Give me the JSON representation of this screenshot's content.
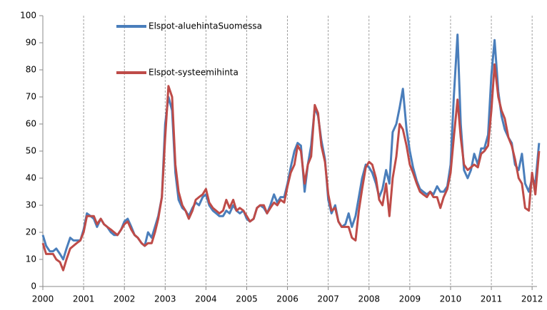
{
  "chart_data": {
    "type": "line",
    "x": [
      2000,
      2000.08,
      2000.17,
      2000.25,
      2000.33,
      2000.42,
      2000.5,
      2000.58,
      2000.67,
      2000.75,
      2000.83,
      2000.92,
      2001,
      2001.08,
      2001.17,
      2001.25,
      2001.33,
      2001.42,
      2001.5,
      2001.58,
      2001.67,
      2001.75,
      2001.83,
      2001.92,
      2002,
      2002.08,
      2002.17,
      2002.25,
      2002.33,
      2002.42,
      2002.5,
      2002.58,
      2002.67,
      2002.75,
      2002.83,
      2002.92,
      2003,
      2003.08,
      2003.17,
      2003.25,
      2003.33,
      2003.42,
      2003.5,
      2003.58,
      2003.67,
      2003.75,
      2003.83,
      2003.92,
      2004,
      2004.08,
      2004.17,
      2004.25,
      2004.33,
      2004.42,
      2004.5,
      2004.58,
      2004.67,
      2004.75,
      2004.83,
      2004.92,
      2005,
      2005.08,
      2005.17,
      2005.25,
      2005.33,
      2005.42,
      2005.5,
      2005.58,
      2005.67,
      2005.75,
      2005.83,
      2005.92,
      2006,
      2006.08,
      2006.17,
      2006.25,
      2006.33,
      2006.42,
      2006.5,
      2006.58,
      2006.67,
      2006.75,
      2006.83,
      2006.92,
      2007,
      2007.08,
      2007.17,
      2007.25,
      2007.33,
      2007.42,
      2007.5,
      2007.58,
      2007.67,
      2007.75,
      2007.83,
      2007.92,
      2008,
      2008.08,
      2008.17,
      2008.25,
      2008.33,
      2008.42,
      2008.5,
      2008.58,
      2008.67,
      2008.75,
      2008.83,
      2008.92,
      2009,
      2009.08,
      2009.17,
      2009.25,
      2009.33,
      2009.42,
      2009.5,
      2009.58,
      2009.67,
      2009.75,
      2009.83,
      2009.92,
      2010,
      2010.08,
      2010.17,
      2010.25,
      2010.33,
      2010.42,
      2010.5,
      2010.58,
      2010.67,
      2010.75,
      2010.83,
      2010.92,
      2011,
      2011.08,
      2011.17,
      2011.25,
      2011.33,
      2011.42,
      2011.5,
      2011.58,
      2011.67,
      2011.75,
      2011.83,
      2011.92,
      2012,
      2012.08,
      2012.17
    ],
    "series": [
      {
        "name": "Elspot-aluehintaSuomessa",
        "color": "#4a7ebb",
        "values": [
          19,
          15,
          13,
          13,
          14,
          12,
          10,
          14,
          18,
          17,
          17,
          17,
          21,
          27,
          26,
          25,
          22,
          25,
          23,
          22,
          20,
          19,
          19,
          21,
          24,
          25,
          22,
          19,
          18,
          16,
          15,
          20,
          18,
          22,
          26,
          33,
          60,
          70,
          65,
          42,
          32,
          29,
          28,
          26,
          29,
          31,
          30,
          33,
          34,
          30,
          28,
          27,
          26,
          26,
          28,
          27,
          30,
          28,
          27,
          28,
          25,
          24,
          25,
          29,
          30,
          29,
          27,
          30,
          34,
          31,
          33,
          33,
          38,
          44,
          50,
          53,
          52,
          35,
          45,
          52,
          66,
          63,
          54,
          47,
          32,
          27,
          30,
          24,
          22,
          23,
          27,
          22,
          26,
          33,
          40,
          45,
          44,
          42,
          38,
          33,
          36,
          43,
          38,
          57,
          60,
          66,
          73,
          58,
          50,
          44,
          39,
          36,
          35,
          34,
          35,
          34,
          37,
          35,
          35,
          37,
          45,
          70,
          93,
          60,
          43,
          40,
          43,
          49,
          45,
          51,
          51,
          56,
          78,
          91,
          72,
          63,
          58,
          55,
          53,
          45,
          43,
          49,
          38,
          35,
          40,
          38,
          53
        ]
      },
      {
        "name": "Elspot-systeemihinta",
        "color": "#be4b48",
        "values": [
          16,
          12,
          12,
          12,
          10,
          9,
          6,
          10,
          14,
          15,
          16,
          17,
          20,
          26,
          26,
          26,
          23,
          25,
          23,
          22,
          21,
          20,
          19,
          21,
          23,
          24,
          21,
          19,
          18,
          16,
          15,
          16,
          16,
          20,
          25,
          33,
          55,
          74,
          70,
          45,
          35,
          30,
          28,
          25,
          28,
          32,
          33,
          34,
          36,
          31,
          29,
          28,
          27,
          28,
          32,
          29,
          32,
          28,
          29,
          28,
          26,
          24,
          25,
          29,
          30,
          30,
          27,
          29,
          31,
          30,
          32,
          31,
          37,
          42,
          45,
          52,
          50,
          38,
          45,
          48,
          67,
          64,
          52,
          46,
          34,
          28,
          29,
          24,
          22,
          22,
          22,
          18,
          17,
          28,
          36,
          44,
          46,
          45,
          40,
          32,
          30,
          38,
          26,
          40,
          48,
          60,
          58,
          52,
          45,
          42,
          38,
          35,
          34,
          33,
          35,
          33,
          33,
          29,
          33,
          36,
          42,
          55,
          69,
          55,
          45,
          43,
          44,
          45,
          44,
          49,
          50,
          52,
          65,
          82,
          70,
          65,
          62,
          55,
          52,
          47,
          40,
          38,
          29,
          28,
          42,
          34,
          50
        ]
      }
    ],
    "xlim": [
      2000,
      2012.12
    ],
    "xticks": [
      2000,
      2001,
      2002,
      2003,
      2004,
      2005,
      2006,
      2007,
      2008,
      2009,
      2010,
      2011,
      2012
    ],
    "ylim": [
      0,
      100
    ],
    "yticks": [
      0,
      10,
      20,
      30,
      40,
      50,
      60,
      70,
      80,
      90,
      100
    ],
    "grid": true
  }
}
